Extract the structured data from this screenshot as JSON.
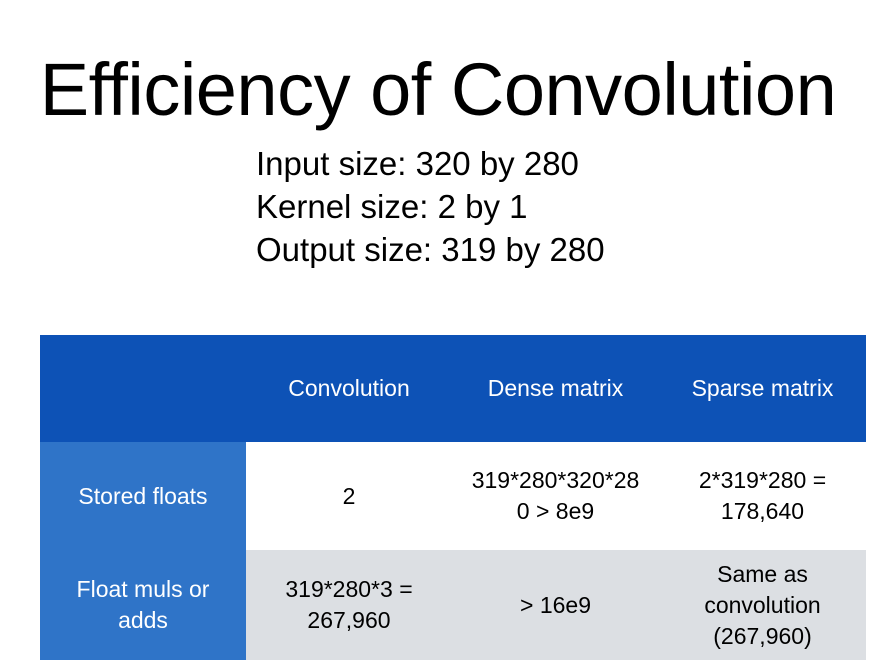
{
  "slide": {
    "title": "Efficiency of Convolution",
    "info": [
      "Input size: 320 by 280",
      "Kernel size: 2 by 1",
      "Output size: 319 by 280"
    ]
  },
  "table": {
    "corner": "",
    "columns": [
      "Convolution",
      "Dense matrix",
      "Sparse matrix"
    ],
    "rows": [
      {
        "label": "Stored floats",
        "cells": [
          [
            "2"
          ],
          [
            "319*280*320*28",
            "0 > 8e9"
          ],
          [
            "2*319*280 =",
            "178,640"
          ]
        ]
      },
      {
        "label_lines": [
          "Float muls or",
          "adds"
        ],
        "cells": [
          [
            "319*280*3 =",
            "267,960"
          ],
          [
            "> 16e9"
          ],
          [
            "Same as",
            "convolution",
            "(267,960)"
          ]
        ]
      }
    ]
  },
  "colors": {
    "header_bg": "#0d52b6",
    "row_header_bg": "#2f74c8",
    "alt_row_bg": "#dcdfe3",
    "header_text": "#ffffff"
  }
}
